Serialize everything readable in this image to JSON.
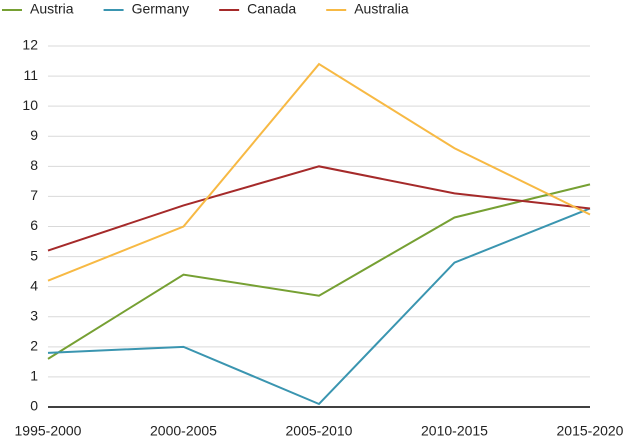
{
  "chart_data": {
    "type": "line",
    "categories": [
      "1995-2000",
      "2000-2005",
      "2005-2010",
      "2010-2015",
      "2015-2020"
    ],
    "series": [
      {
        "name": "Austria",
        "color": "#76a033",
        "values": [
          1.6,
          4.4,
          3.7,
          6.3,
          7.4
        ]
      },
      {
        "name": "Germany",
        "color": "#3a95b0",
        "values": [
          1.8,
          2.0,
          0.1,
          4.8,
          6.6
        ]
      },
      {
        "name": "Canada",
        "color": "#a52a2a",
        "values": [
          5.2,
          6.7,
          8.0,
          7.1,
          6.6
        ]
      },
      {
        "name": "Australia",
        "color": "#f7b944",
        "values": [
          4.2,
          6.0,
          11.4,
          8.6,
          6.4
        ]
      }
    ],
    "ylim": [
      0,
      12
    ],
    "yticks": [
      0,
      1,
      2,
      3,
      4,
      5,
      6,
      7,
      8,
      9,
      10,
      11,
      12
    ],
    "grid": true
  }
}
